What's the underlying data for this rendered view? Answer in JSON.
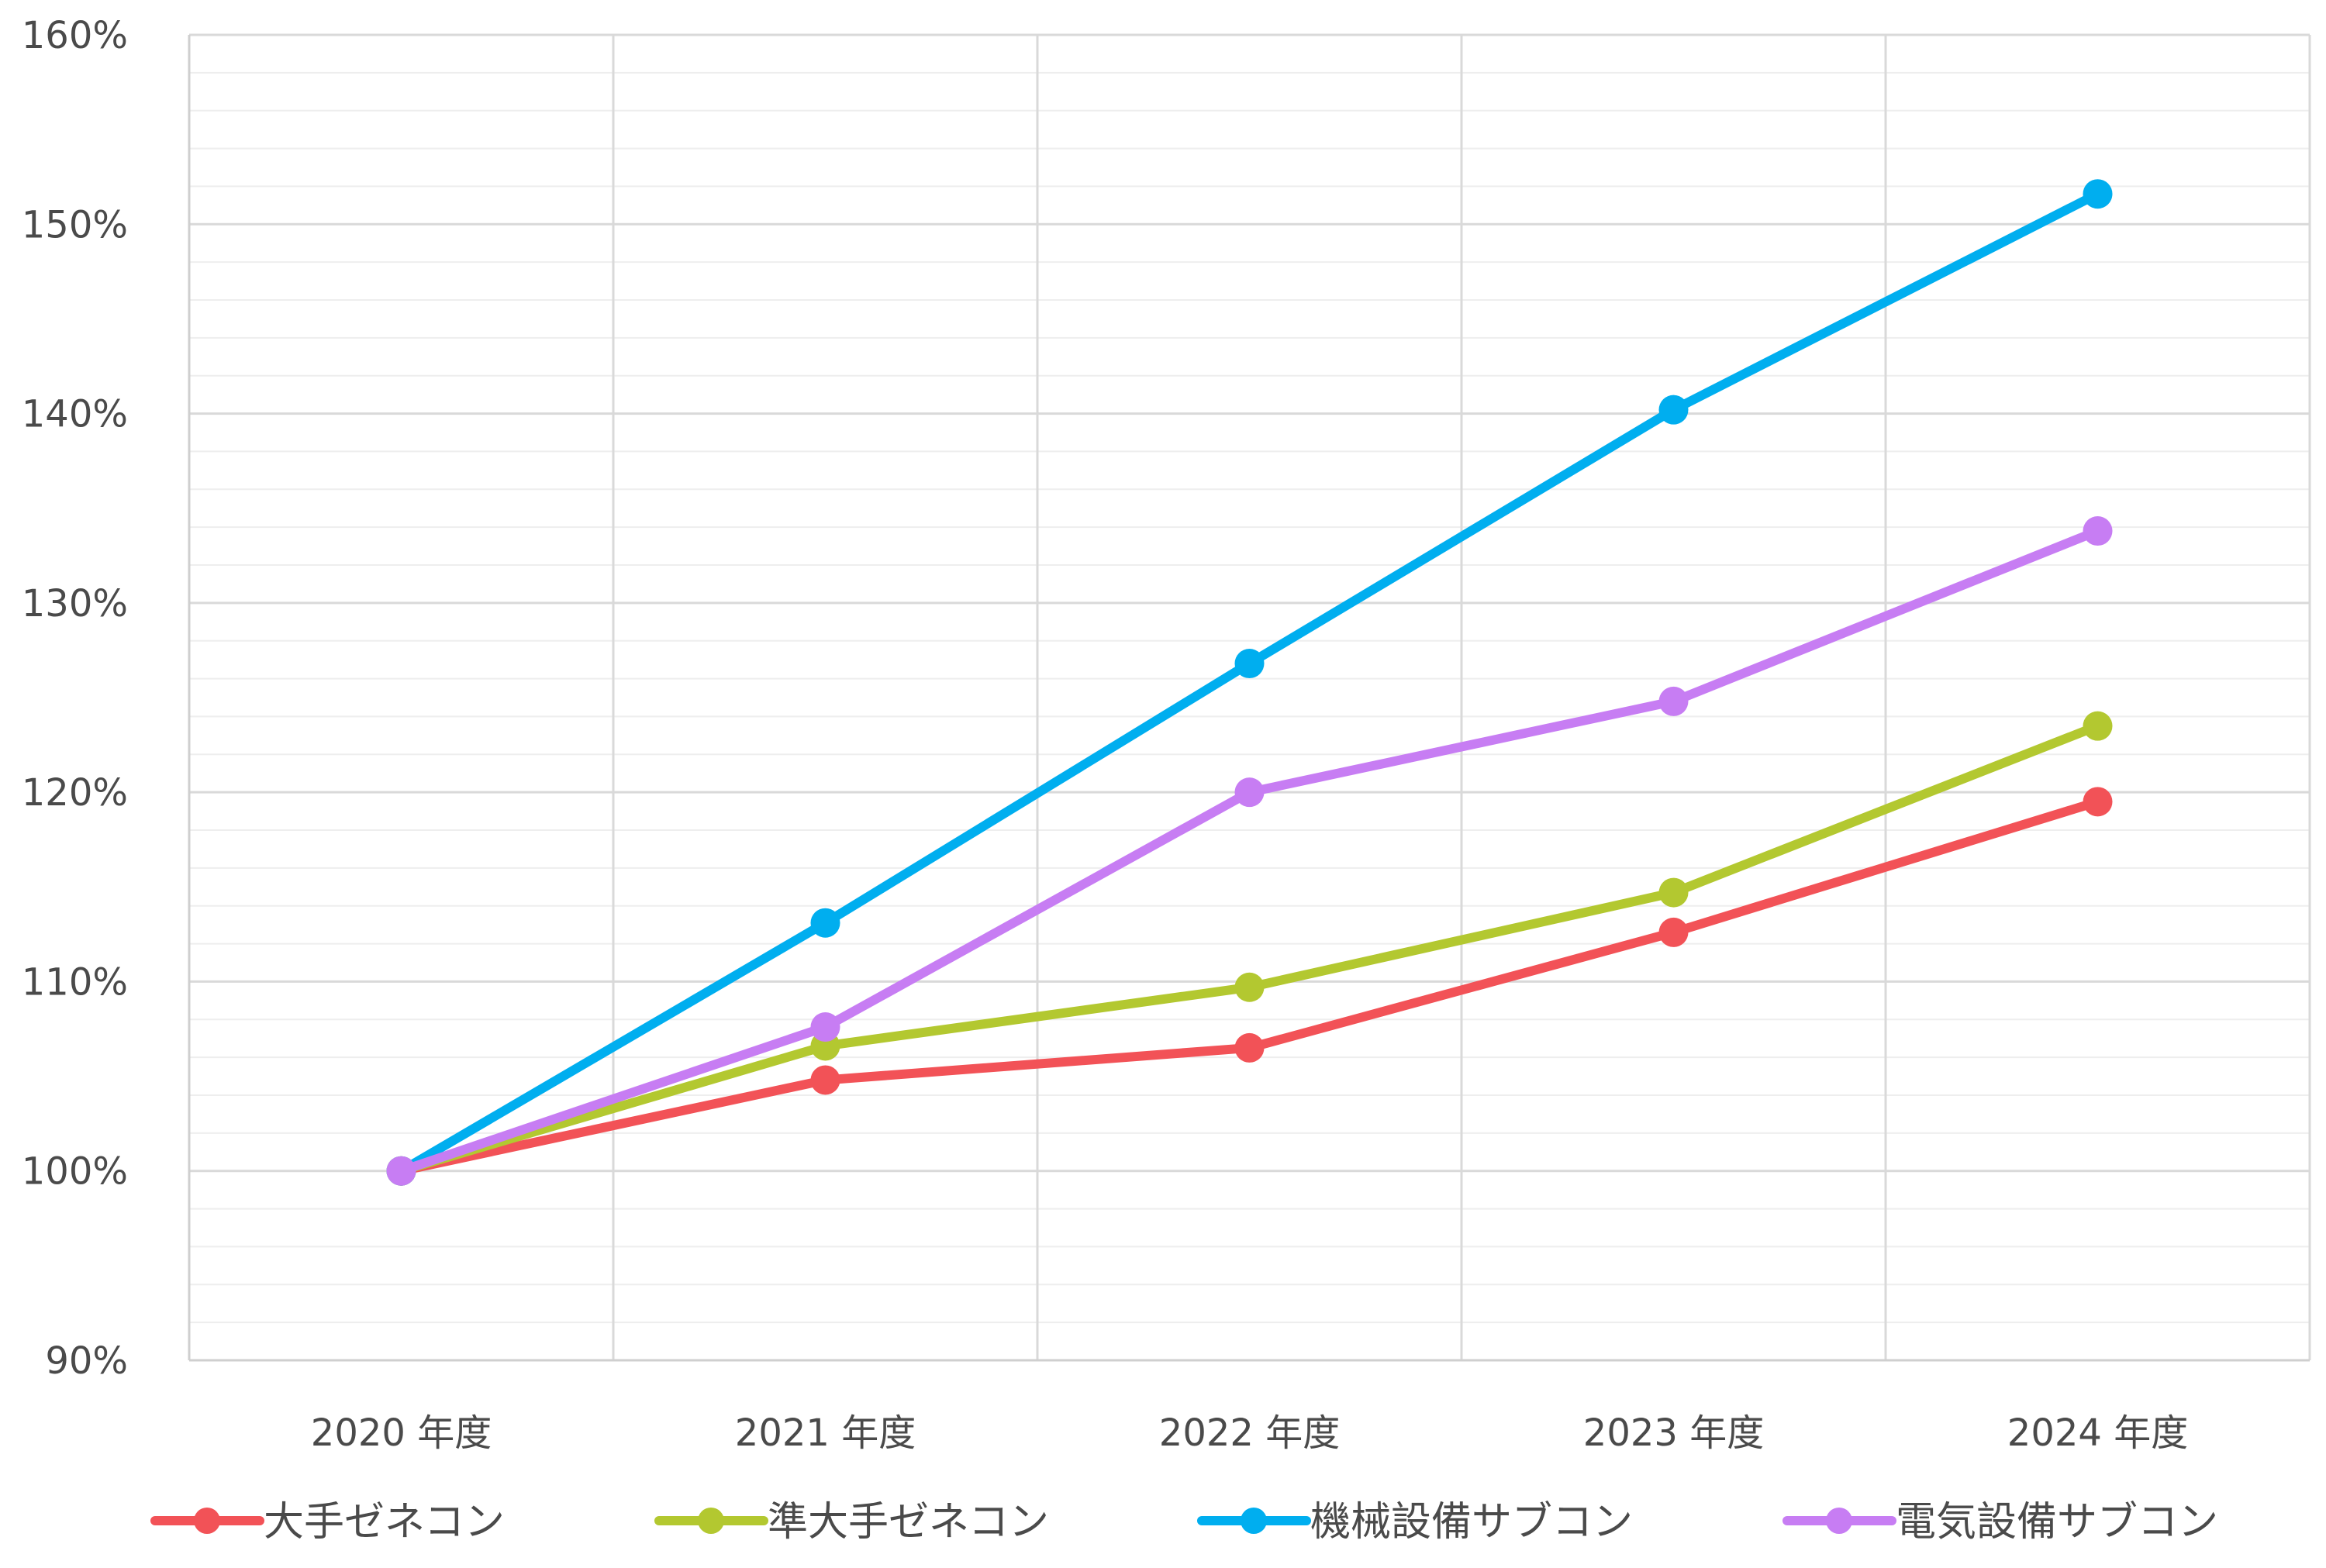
{
  "chart_data": {
    "type": "line",
    "title": "",
    "xlabel": "",
    "ylabel": "",
    "categories": [
      "2020 年度",
      "2021 年度",
      "2022 年度",
      "2023 年度",
      "2024 年度"
    ],
    "ylim": [
      90,
      160
    ],
    "y_ticks": [
      "90%",
      "100%",
      "110%",
      "120%",
      "130%",
      "140%",
      "150%",
      "160%"
    ],
    "grid": true,
    "legend_position": "bottom",
    "series": [
      {
        "name": "大手ゼネコン",
        "color": "#f25257",
        "values": [
          100,
          104.8,
          106.5,
          112.6,
          119.5
        ]
      },
      {
        "name": "準大手ゼネコン",
        "color": "#b3c830",
        "values": [
          100,
          106.6,
          109.7,
          114.7,
          123.5
        ]
      },
      {
        "name": "機械設備サブコン",
        "color": "#00aeef",
        "values": [
          100,
          113.1,
          126.8,
          140.2,
          151.6
        ]
      },
      {
        "name": "電気設備サブコン",
        "color": "#c77df3",
        "values": [
          100,
          107.6,
          120.0,
          124.8,
          133.8
        ]
      }
    ]
  }
}
